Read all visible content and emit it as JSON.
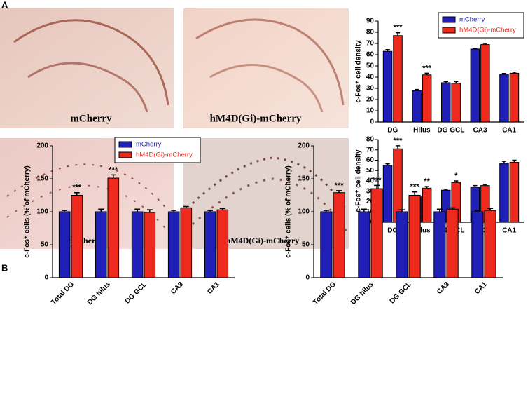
{
  "panel_labels": [
    "A",
    "B"
  ],
  "images": [
    "mCherry",
    "hM4D(Gi)-mCherry",
    "mCherry",
    "hM4D(Gi)-mCherry"
  ],
  "chart_data": [
    {
      "type": "bar",
      "ylabel": "c-Fos⁺ cell density",
      "categories": [
        "DG",
        "Hilus",
        "DG GCL",
        "CA3",
        "CA1"
      ],
      "series": [
        {
          "name": "mCherry",
          "color": "#1f1fb8",
          "values": [
            63,
            28,
            35,
            65,
            42.5
          ],
          "errors": [
            1.5,
            1,
            1,
            0.8,
            0.8
          ]
        },
        {
          "name": "hM4D(Gi)-mCherry",
          "color": "#ee2a1e",
          "values": [
            77,
            42,
            34.5,
            69,
            43.5
          ],
          "errors": [
            2.5,
            1.5,
            1.5,
            1,
            1
          ]
        }
      ],
      "annotations": [
        "***",
        "***",
        null,
        null,
        null
      ],
      "ylim": [
        0,
        90
      ],
      "yticks": [
        0,
        10,
        20,
        30,
        40,
        50,
        60,
        70,
        80,
        90
      ],
      "legend": "upper right"
    },
    {
      "type": "bar",
      "ylabel": "c-Fos⁺ cell density",
      "categories": [
        "DG",
        "Hilus",
        "DG GCL",
        "CA3",
        "CA1"
      ],
      "series": [
        {
          "name": "mCherry",
          "color": "#1f1fb8",
          "values": [
            55,
            24.5,
            31,
            34,
            57
          ],
          "errors": [
            1.5,
            1.5,
            1,
            1.5,
            2
          ]
        },
        {
          "name": "hM4D(Gi)-mCherry",
          "color": "#ee2a1e",
          "values": [
            71,
            33,
            38.5,
            35.5,
            58
          ],
          "errors": [
            3,
            1.5,
            1.5,
            1,
            2
          ]
        }
      ],
      "annotations": [
        "***",
        "**",
        "*",
        null,
        null
      ],
      "ylim": [
        0,
        80
      ],
      "yticks": [
        0,
        10,
        20,
        30,
        40,
        50,
        60,
        70,
        80
      ]
    },
    {
      "type": "bar",
      "ylabel": "c-Fos⁺ cells (% of mCherry)",
      "categories": [
        "Total DG",
        "DG hilus",
        "DG GCL",
        "CA3",
        "CA1"
      ],
      "series": [
        {
          "name": "mCherry",
          "color": "#1f1fb8",
          "values": [
            100,
            100,
            100,
            100,
            100
          ],
          "errors": [
            2,
            4,
            4,
            2,
            2
          ]
        },
        {
          "name": "hM4D(Gi)-mCherry",
          "color": "#ee2a1e",
          "values": [
            125,
            151,
            99,
            106,
            103
          ],
          "errors": [
            4,
            5,
            4,
            2,
            2
          ]
        }
      ],
      "annotations": [
        "***",
        "***",
        null,
        null,
        null
      ],
      "ylim": [
        0,
        200
      ],
      "yticks": [
        0,
        50,
        100,
        150,
        200
      ],
      "legend": "upper center"
    },
    {
      "type": "bar",
      "ylabel": "c-Fos⁺ cells (% of mCherry)",
      "categories": [
        "Total DG",
        "DG hilus",
        "DG GCL",
        "CA3",
        "CA1"
      ],
      "series": [
        {
          "name": "mCherry",
          "color": "#1f1fb8",
          "values": [
            100,
            100,
            100,
            100,
            100
          ],
          "errors": [
            2,
            4,
            3,
            4,
            2
          ]
        },
        {
          "name": "hM4D(Gi)-mCherry",
          "color": "#ee2a1e",
          "values": [
            129,
            135,
            125,
            104,
            102
          ],
          "errors": [
            3,
            5,
            5,
            2,
            3
          ]
        }
      ],
      "annotations": [
        "***",
        "***",
        "***",
        null,
        null
      ],
      "ylim": [
        0,
        200
      ],
      "yticks": [
        0,
        50,
        100,
        150,
        200
      ]
    }
  ]
}
